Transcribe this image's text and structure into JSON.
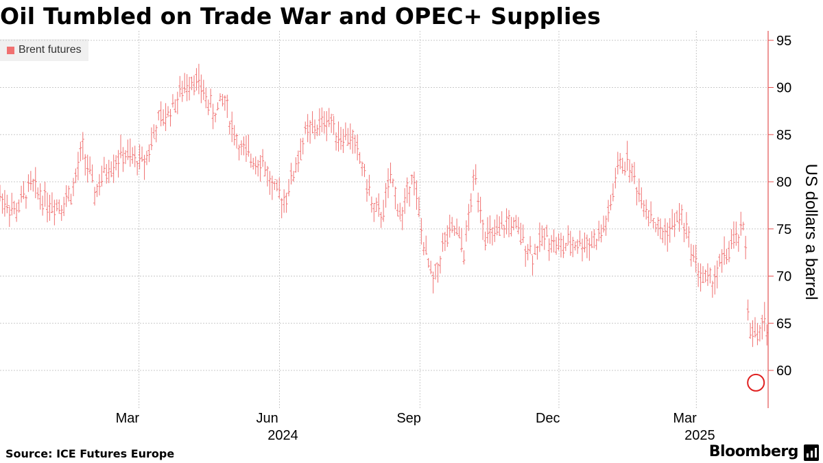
{
  "title": "Oil Tumbled on Trade War and OPEC+ Supplies",
  "legend_label": "Brent futures",
  "source": "Source: ICE Futures Europe",
  "brand": "Bloomberg",
  "colors": {
    "series": "#f07070",
    "axis": "#e35050",
    "grid": "#c8c8c8",
    "annotation": "#e02020"
  },
  "chart_data": {
    "type": "line",
    "style": "ohlc-bars",
    "series": [
      {
        "name": "Brent futures"
      }
    ],
    "ylabel": "US dollars a barrel",
    "ylim": [
      56,
      96
    ],
    "y_ticks": [
      60,
      65,
      70,
      75,
      80,
      85,
      90,
      95
    ],
    "x_range": [
      "2023-12-01",
      "2025-04-17"
    ],
    "x_ticks": [
      {
        "date": "2024-03-01",
        "label": "Mar"
      },
      {
        "date": "2024-06-01",
        "label": "Jun"
      },
      {
        "date": "2024-09-01",
        "label": "Sep"
      },
      {
        "date": "2024-12-01",
        "label": "Dec"
      },
      {
        "date": "2025-03-01",
        "label": "Mar"
      }
    ],
    "year_labels": [
      {
        "date": "2024-06-01",
        "label": "2024"
      },
      {
        "date": "2025-03-01",
        "label": "2025"
      }
    ],
    "legend_position": "top-left",
    "grid": true,
    "annotation": {
      "type": "circle",
      "date": "2025-04-09",
      "value": 58.7
    },
    "x": [
      "2023-12-01",
      "2023-12-11",
      "2023-12-21",
      "2024-01-02",
      "2024-01-10",
      "2024-01-18",
      "2024-01-24",
      "2024-02-01",
      "2024-02-09",
      "2024-02-19",
      "2024-02-27",
      "2024-03-05",
      "2024-03-13",
      "2024-03-19",
      "2024-03-28",
      "2024-04-05",
      "2024-04-12",
      "2024-04-19",
      "2024-04-26",
      "2024-04-30",
      "2024-05-07",
      "2024-05-14",
      "2024-05-21",
      "2024-05-28",
      "2024-06-04",
      "2024-06-10",
      "2024-06-18",
      "2024-06-26",
      "2024-07-03",
      "2024-07-10",
      "2024-07-18",
      "2024-07-25",
      "2024-08-02",
      "2024-08-07",
      "2024-08-13",
      "2024-08-20",
      "2024-08-27",
      "2024-09-04",
      "2024-09-10",
      "2024-09-17",
      "2024-09-24",
      "2024-09-30",
      "2024-10-07",
      "2024-10-14",
      "2024-10-21",
      "2024-10-29",
      "2024-11-05",
      "2024-11-14",
      "2024-11-22",
      "2024-12-02",
      "2024-12-11",
      "2024-12-19",
      "2024-12-27",
      "2025-01-03",
      "2025-01-08",
      "2025-01-15",
      "2025-01-22",
      "2025-01-29",
      "2025-02-05",
      "2025-02-12",
      "2025-02-19",
      "2025-02-26",
      "2025-03-04",
      "2025-03-11",
      "2025-03-20",
      "2025-03-27",
      "2025-04-02",
      "2025-04-03",
      "2025-04-04",
      "2025-04-08",
      "2025-04-09",
      "2025-04-10",
      "2025-04-14",
      "2025-04-17"
    ],
    "values": [
      78.5,
      76.8,
      79.6,
      77.8,
      77.6,
      79.2,
      83.6,
      78.8,
      81.4,
      82.9,
      82.3,
      82.2,
      86.2,
      87.0,
      89.3,
      91.2,
      89.6,
      87.1,
      88.9,
      86.2,
      83.3,
      82.5,
      82.2,
      79.0,
      78.1,
      80.8,
      85.1,
      85.8,
      86.8,
      84.9,
      84.8,
      81.8,
      76.8,
      76.5,
      80.4,
      76.0,
      81.2,
      72.7,
      69.2,
      73.7,
      75.0,
      72.6,
      80.9,
      74.2,
      74.3,
      75.8,
      74.5,
      72.3,
      74.4,
      73.0,
      73.5,
      73.5,
      74.0,
      76.5,
      81.4,
      82.3,
      79.0,
      76.9,
      74.5,
      75.0,
      76.5,
      72.8,
      70.0,
      69.3,
      72.2,
      74.0,
      74.9,
      70.1,
      65.6,
      62.8,
      65.5,
      63.2,
      64.8,
      65.0
    ]
  }
}
